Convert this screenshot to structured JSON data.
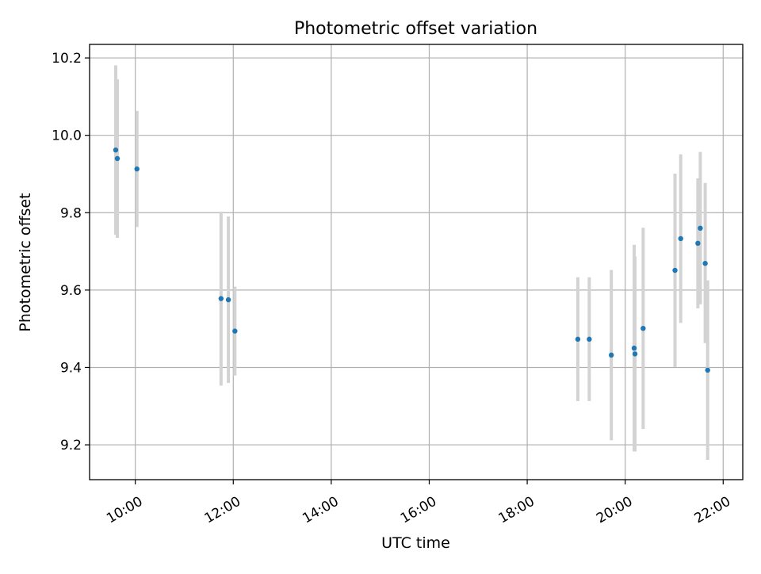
{
  "chart_data": {
    "type": "scatter",
    "title": "Photometric offset variation",
    "xlabel": "UTC time",
    "ylabel": "Photometric offset",
    "x_ticks": [
      "10:00",
      "12:00",
      "14:00",
      "16:00",
      "18:00",
      "20:00",
      "22:00"
    ],
    "y_ticks": [
      "9.2",
      "9.4",
      "9.6",
      "9.8",
      "10.0",
      "10.2"
    ],
    "xlim": [
      "09:04",
      "22:24"
    ],
    "ylim": [
      9.11,
      10.235
    ],
    "grid": true,
    "point_color": "#1f77b4",
    "errorbar_color": "#d3d3d3",
    "points": [
      {
        "x": "09:36",
        "y": 9.962,
        "ylow": 9.743,
        "yhigh": 10.181
      },
      {
        "x": "09:38",
        "y": 9.94,
        "ylow": 9.735,
        "yhigh": 10.145
      },
      {
        "x": "10:02",
        "y": 9.913,
        "ylow": 9.763,
        "yhigh": 10.063
      },
      {
        "x": "11:45",
        "y": 9.578,
        "ylow": 9.353,
        "yhigh": 9.803
      },
      {
        "x": "11:54",
        "y": 9.575,
        "ylow": 9.36,
        "yhigh": 9.79
      },
      {
        "x": "12:02",
        "y": 9.494,
        "ylow": 9.379,
        "yhigh": 9.609
      },
      {
        "x": "19:02",
        "y": 9.473,
        "ylow": 9.313,
        "yhigh": 9.633
      },
      {
        "x": "19:16",
        "y": 9.473,
        "ylow": 9.313,
        "yhigh": 9.633
      },
      {
        "x": "19:43",
        "y": 9.432,
        "ylow": 9.212,
        "yhigh": 9.652
      },
      {
        "x": "20:11",
        "y": 9.45,
        "ylow": 9.183,
        "yhigh": 9.717
      },
      {
        "x": "20:12",
        "y": 9.435,
        "ylow": 9.183,
        "yhigh": 9.687
      },
      {
        "x": "20:22",
        "y": 9.501,
        "ylow": 9.241,
        "yhigh": 9.761
      },
      {
        "x": "21:01",
        "y": 9.651,
        "ylow": 9.401,
        "yhigh": 9.901
      },
      {
        "x": "21:08",
        "y": 9.733,
        "ylow": 9.515,
        "yhigh": 9.951
      },
      {
        "x": "21:29",
        "y": 9.721,
        "ylow": 9.553,
        "yhigh": 9.889
      },
      {
        "x": "21:32",
        "y": 9.76,
        "ylow": 9.563,
        "yhigh": 9.957
      },
      {
        "x": "21:38",
        "y": 9.669,
        "ylow": 9.463,
        "yhigh": 9.877
      },
      {
        "x": "21:41",
        "y": 9.393,
        "ylow": 9.161,
        "yhigh": 9.625
      }
    ]
  }
}
